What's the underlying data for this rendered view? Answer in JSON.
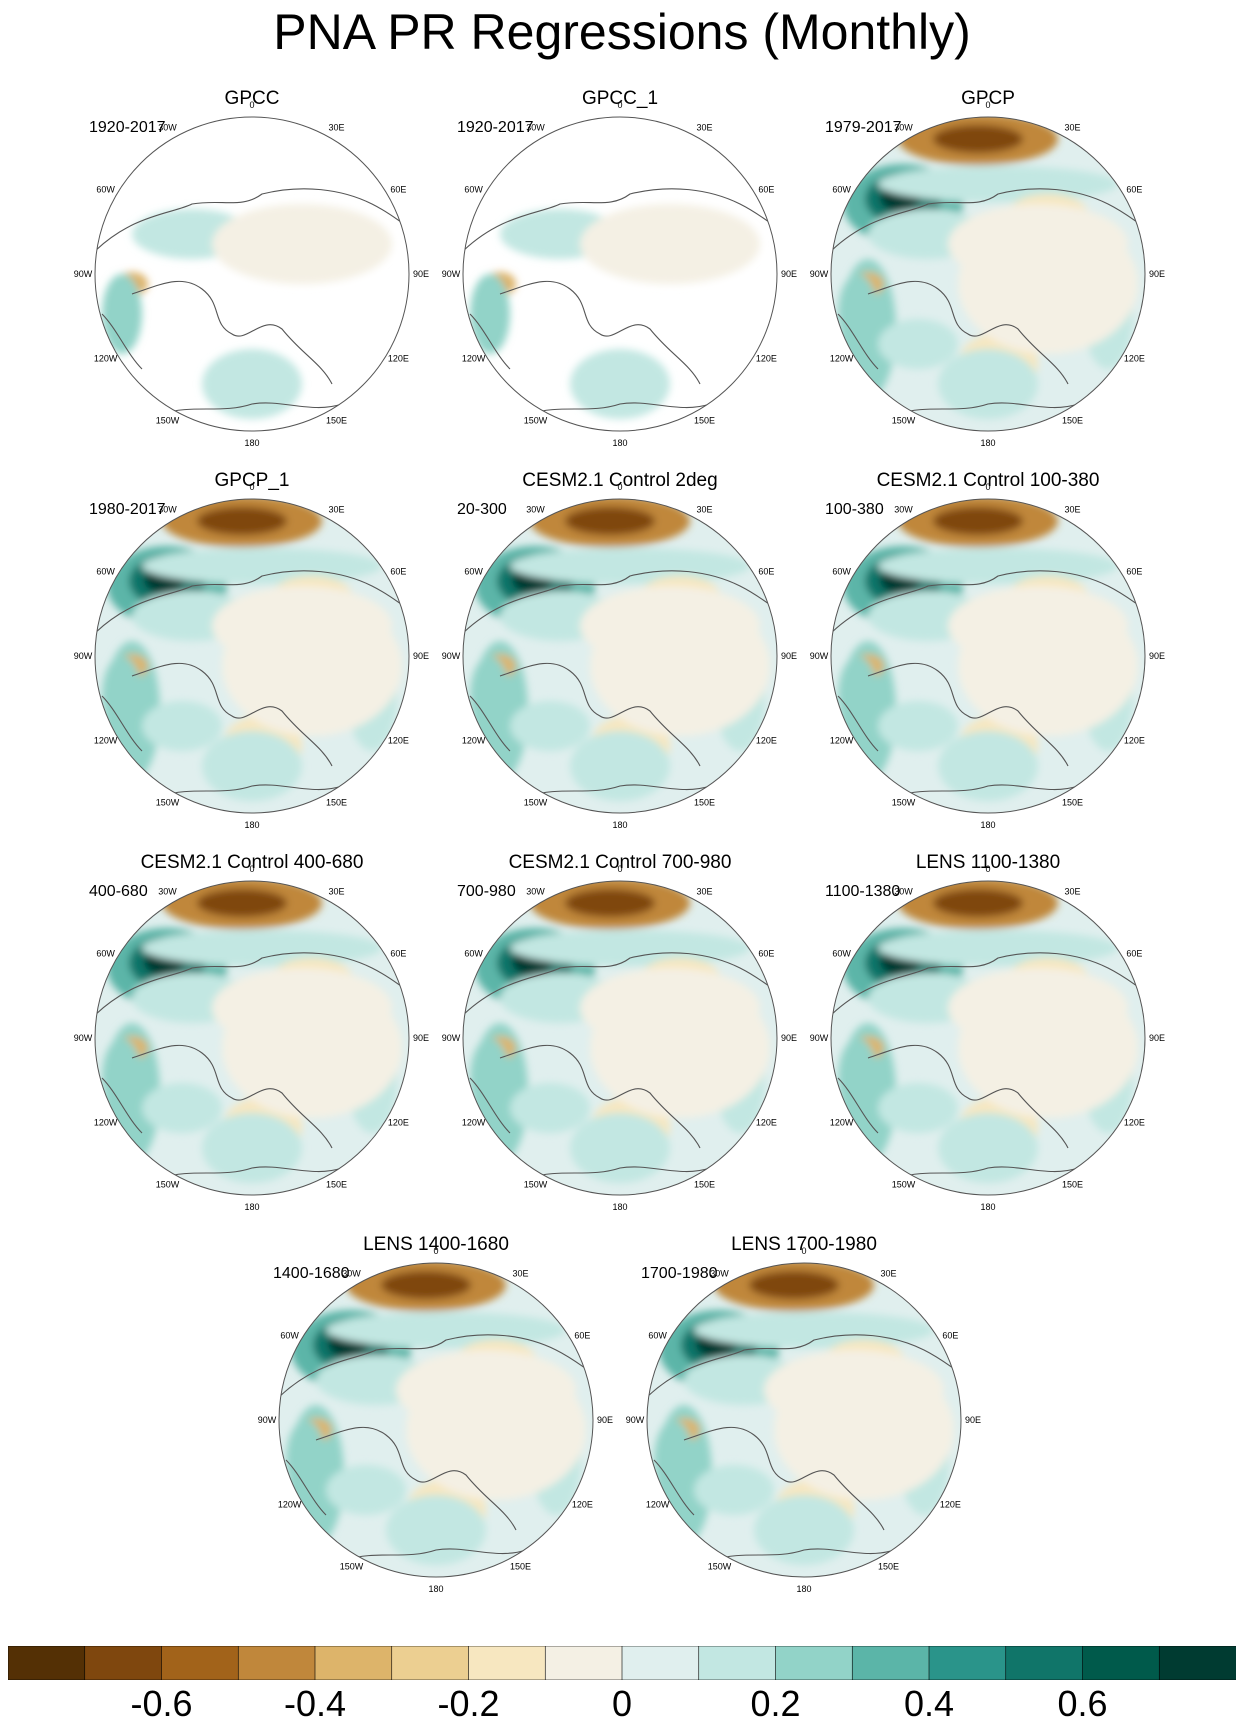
{
  "title": "PNA PR Regressions (Monthly)",
  "chart_data": {
    "type": "heatmap",
    "projection": "north-polar-stereographic",
    "variable": "precipitation regression on PNA",
    "longitude_labels": [
      "180",
      "150E",
      "120E",
      "90E",
      "60E",
      "30E",
      "0",
      "30W",
      "60W",
      "90W",
      "120W",
      "150W"
    ],
    "panels": [
      {
        "title": "GPCC",
        "period": "1920-2017",
        "coverage": "land-only"
      },
      {
        "title": "GPCC_1",
        "period": "1920-2017",
        "coverage": "land-only"
      },
      {
        "title": "GPCP",
        "period": "1979-2017",
        "coverage": "global"
      },
      {
        "title": "GPCP_1",
        "period": "1980-2017",
        "coverage": "global"
      },
      {
        "title": "CESM2.1 Control 2deg",
        "period": "20-300",
        "coverage": "global"
      },
      {
        "title": "CESM2.1 Control 100-380",
        "period": "100-380",
        "coverage": "global"
      },
      {
        "title": "CESM2.1 Control 400-680",
        "period": "400-680",
        "coverage": "global"
      },
      {
        "title": "CESM2.1 Control 700-980",
        "period": "700-980",
        "coverage": "global"
      },
      {
        "title": "LENS 1100-1380",
        "period": "1100-1380",
        "coverage": "global"
      },
      {
        "title": "LENS 1400-1680",
        "period": "1400-1680",
        "coverage": "global"
      },
      {
        "title": "LENS 1700-1980",
        "period": "1700-1980",
        "coverage": "global"
      }
    ],
    "colorbar": {
      "levels": [
        -0.7,
        -0.6,
        -0.5,
        -0.4,
        -0.3,
        -0.2,
        -0.1,
        0,
        0.1,
        0.2,
        0.3,
        0.4,
        0.5,
        0.6,
        0.7
      ],
      "tick_labels": [
        "-0.6",
        "-0.4",
        "-0.2",
        "0",
        "0.2",
        "0.4",
        "0.6"
      ],
      "tick_values": [
        -0.6,
        -0.4,
        -0.2,
        0,
        0.2,
        0.4,
        0.6
      ],
      "colors": [
        "#543005",
        "#7f470e",
        "#a2631a",
        "#c0873b",
        "#ddb46a",
        "#eccf91",
        "#f7e7c0",
        "#f4f0e4",
        "#e0efee",
        "#c2e7e2",
        "#92d3c8",
        "#5bb5a8",
        "#2a948a",
        "#107569",
        "#005a4b",
        "#003b31"
      ],
      "placement": "bottom"
    }
  }
}
